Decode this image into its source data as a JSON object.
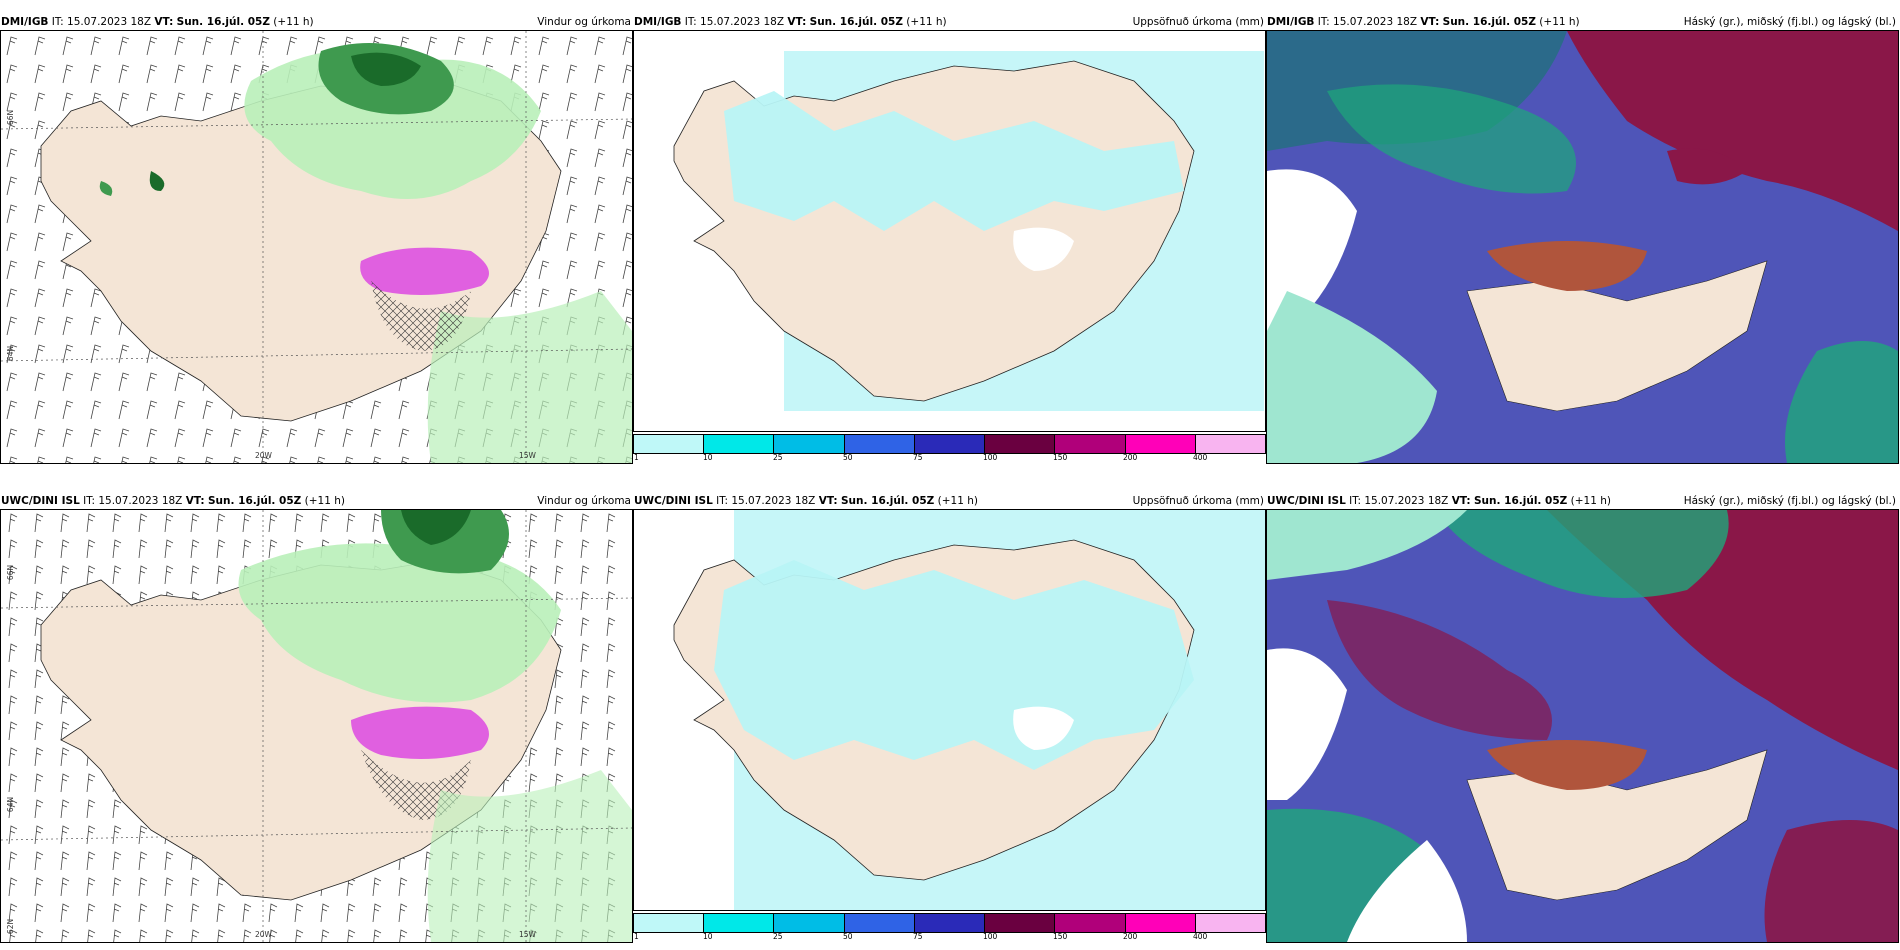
{
  "panels": [
    {
      "model": "DMI/IGB",
      "init": "IT: 15.07.2023 18Z",
      "vt_label": "VT:",
      "vt": "Sun. 16.júl. 05Z",
      "lead": "(+11 h)",
      "title": "Vindur og úrkoma"
    },
    {
      "model": "DMI/IGB",
      "init": "IT: 15.07.2023 18Z",
      "vt_label": "VT:",
      "vt": "Sun. 16.júl. 05Z",
      "lead": "(+11 h)",
      "title": "Uppsöfnuð úrkoma (mm)"
    },
    {
      "model": "DMI/IGB",
      "init": "IT: 15.07.2023 18Z",
      "vt_label": "VT:",
      "vt": "Sun. 16.júl. 05Z",
      "lead": "(+11 h)",
      "title": "Háský (gr.), miðský (fj.bl.) og lágský (bl.)"
    },
    {
      "model": "UWC/DINI ISL",
      "init": "IT: 15.07.2023 18Z",
      "vt_label": "VT:",
      "vt": "Sun. 16.júl. 05Z",
      "lead": "(+11 h)",
      "title": "Vindur og úrkoma"
    },
    {
      "model": "UWC/DINI ISL",
      "init": "IT: 15.07.2023 18Z",
      "vt_label": "VT:",
      "vt": "Sun. 16.júl. 05Z",
      "lead": "(+11 h)",
      "title": "Uppsöfnuð úrkoma (mm)"
    },
    {
      "model": "UWC/DINI ISL",
      "init": "IT: 15.07.2023 18Z",
      "vt_label": "VT:",
      "vt": "Sun. 16.júl. 05Z",
      "lead": "(+11 h)",
      "title": "Háský (gr.), miðský (fj.bl.) og lágský (bl.)"
    }
  ],
  "grid_labels": {
    "lat66": "66N",
    "lat64": "64N",
    "lat62": "62N",
    "lon20": "20W",
    "lon15": "15W"
  },
  "colorbar": {
    "ticks": [
      "1",
      "10",
      "25",
      "50",
      "75",
      "100",
      "150",
      "200",
      "400"
    ],
    "colors": [
      "#bff8f8",
      "#00e8e8",
      "#00bde6",
      "#2f63e6",
      "#2a2ab8",
      "#6a0040",
      "#b0007a",
      "#ff00b8",
      "#f8b4f0"
    ]
  },
  "colors": {
    "land": "#f4e5d6",
    "precip_light": "#b9f0b9",
    "precip_dark": "#1a6b2a",
    "accum": "#b8f4f6",
    "cloud_high": "#8a1748",
    "cloud_mid": "#4f55b8",
    "cloud_low": "#1ea87a"
  }
}
